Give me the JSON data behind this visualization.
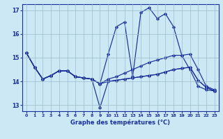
{
  "xlabel": "Graphe des températures (°C)",
  "bg_color": "#cce8f4",
  "grid_color": "#9bbccc",
  "line_color": "#1a2e99",
  "xlim": [
    -0.5,
    23.5
  ],
  "ylim": [
    12.75,
    17.25
  ],
  "yticks": [
    13,
    14,
    15,
    16,
    17
  ],
  "xticks": [
    0,
    1,
    2,
    3,
    4,
    5,
    6,
    7,
    8,
    9,
    10,
    11,
    12,
    13,
    14,
    15,
    16,
    17,
    18,
    19,
    20,
    21,
    22,
    23
  ],
  "series": [
    [
      15.2,
      14.6,
      14.1,
      14.25,
      14.45,
      14.45,
      14.2,
      14.15,
      14.1,
      13.9,
      15.15,
      16.3,
      16.5,
      14.2,
      16.9,
      17.1,
      16.65,
      16.85,
      16.3,
      15.1,
      14.5,
      13.8,
      13.65,
      13.6
    ],
    [
      15.2,
      14.6,
      14.1,
      14.25,
      14.45,
      14.45,
      14.2,
      14.15,
      14.1,
      13.9,
      14.1,
      14.2,
      14.35,
      14.5,
      14.65,
      14.8,
      14.9,
      15.0,
      15.1,
      15.1,
      15.15,
      14.5,
      13.8,
      13.65
    ],
    [
      15.2,
      14.6,
      14.1,
      14.25,
      14.45,
      14.45,
      14.2,
      14.15,
      14.1,
      13.9,
      14.0,
      14.05,
      14.1,
      14.15,
      14.2,
      14.25,
      14.3,
      14.4,
      14.5,
      14.55,
      14.6,
      14.05,
      13.75,
      13.6
    ],
    [
      15.2,
      14.6,
      14.1,
      14.25,
      14.45,
      14.45,
      14.2,
      14.15,
      14.1,
      12.9,
      14.0,
      14.05,
      14.1,
      14.15,
      14.2,
      14.25,
      14.3,
      14.4,
      14.5,
      14.55,
      14.6,
      14.05,
      13.75,
      13.6
    ]
  ]
}
